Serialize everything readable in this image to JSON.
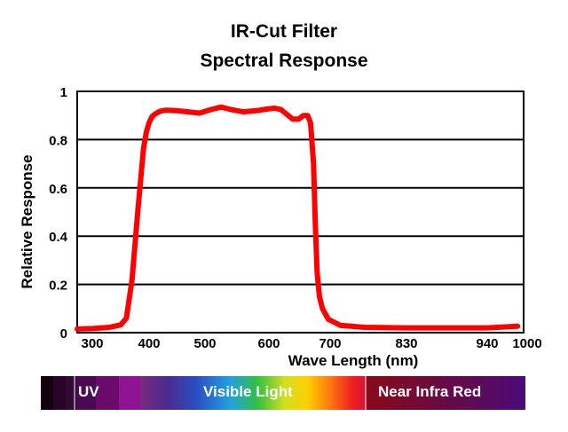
{
  "chart_data": {
    "type": "line",
    "title": "IR-Cut Filter",
    "subtitle": "Spectral Response",
    "xlabel": "Wave Length (nm)",
    "ylabel": "Relative Response",
    "x_ticks": [
      "300",
      "400",
      "500",
      "600",
      "700",
      "830",
      "940",
      "1000"
    ],
    "y_ticks": [
      "0",
      "0.2",
      "0.4",
      "0.6",
      "0.8",
      "1"
    ],
    "ylim": [
      0,
      1
    ],
    "grid": "horizontal",
    "line_color": "#ff0000",
    "series": [
      {
        "x": [
          275,
          300,
          330,
          350,
          360,
          370,
          380,
          390,
          395,
          400,
          405,
          410,
          420,
          430,
          450,
          470,
          490,
          510,
          525,
          540,
          560,
          580,
          600,
          610,
          620,
          630,
          640,
          650,
          658,
          665,
          670,
          675,
          678,
          681,
          685,
          690,
          700,
          720,
          760,
          830,
          940,
          990
        ],
        "y": [
          0.015,
          0.017,
          0.022,
          0.032,
          0.06,
          0.22,
          0.5,
          0.76,
          0.83,
          0.87,
          0.895,
          0.905,
          0.918,
          0.922,
          0.92,
          0.915,
          0.91,
          0.925,
          0.935,
          0.925,
          0.915,
          0.92,
          0.928,
          0.93,
          0.925,
          0.905,
          0.885,
          0.885,
          0.9,
          0.9,
          0.87,
          0.7,
          0.45,
          0.25,
          0.15,
          0.1,
          0.055,
          0.03,
          0.022,
          0.02,
          0.02,
          0.027
        ]
      }
    ]
  },
  "spectrum_bar": {
    "labels": {
      "uv": "UV",
      "visible": "Visible Light",
      "nir": "Near Infra Red"
    }
  }
}
